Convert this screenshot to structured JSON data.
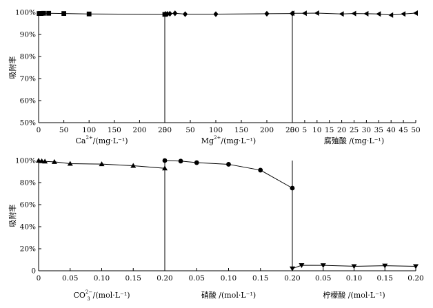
{
  "chart_data": [
    {
      "type": "line",
      "panel": "Ca",
      "ylabel": "吸附率",
      "xlabel_main": "Ca",
      "xlabel_sup": "2+",
      "xlabel_tail": "/(mg·L⁻¹)",
      "xlim": [
        0,
        250
      ],
      "ylim": [
        50,
        100
      ],
      "xticks": [
        "0",
        "50",
        "100",
        "150",
        "200",
        "250"
      ],
      "yticks": [
        "50%",
        "60%",
        "70%",
        "80%",
        "90%",
        "100%"
      ],
      "marker": "square",
      "x": [
        1,
        3,
        5,
        10,
        20,
        50,
        100,
        250
      ],
      "y": [
        99.5,
        99.5,
        99.5,
        99.6,
        99.6,
        99.5,
        99.3,
        99.1
      ]
    },
    {
      "type": "line",
      "panel": "Mg",
      "xlabel_main": "Mg",
      "xlabel_sup": "2+",
      "xlabel_tail": "/(mg·L⁻¹)",
      "xlim": [
        0,
        250
      ],
      "ylim": [
        50,
        100
      ],
      "xticks": [
        "0",
        "50",
        "100",
        "150",
        "200",
        "250"
      ],
      "marker": "diamond",
      "x": [
        1,
        5,
        10,
        20,
        40,
        100,
        200,
        250
      ],
      "y": [
        99.3,
        99.3,
        99.4,
        99.6,
        99.2,
        99.2,
        99.4,
        99.5
      ]
    },
    {
      "type": "line",
      "panel": "humic",
      "xlabel_main": "腐殖酸 /(mg·L⁻¹)",
      "xlim": [
        0,
        50
      ],
      "ylim": [
        50,
        100
      ],
      "xticks": [
        "0",
        "5",
        "10",
        "15",
        "20",
        "25",
        "30",
        "35",
        "40",
        "45",
        "50"
      ],
      "marker": "triangle-left",
      "x": [
        0,
        5,
        10,
        20,
        25,
        30,
        35,
        40,
        45,
        50
      ],
      "y": [
        99.6,
        99.6,
        99.7,
        99.3,
        99.5,
        99.4,
        99.3,
        98.8,
        99.3,
        99.7
      ]
    },
    {
      "type": "line",
      "panel": "CO3",
      "ylabel": "吸附率",
      "xlabel_main": "CO",
      "xlabel_sup": "2−",
      "xlabel_sub": "3",
      "xlabel_tail": "/(mol·L⁻¹)",
      "xlim": [
        0,
        0.2
      ],
      "ylim": [
        0,
        100
      ],
      "xticks": [
        "0",
        "0.05",
        "0.10",
        "0.15",
        "0.20"
      ],
      "yticks": [
        "0",
        "20%",
        "40%",
        "60%",
        "80%",
        "100%"
      ],
      "marker": "triangle-up",
      "x": [
        0,
        0.005,
        0.01,
        0.025,
        0.05,
        0.1,
        0.15,
        0.2
      ],
      "y": [
        100,
        99.5,
        99.2,
        98.8,
        97.2,
        96.8,
        95.3,
        93.0
      ]
    },
    {
      "type": "line",
      "panel": "nitric",
      "xlabel_main": "硝酸 /(mol·L⁻¹)",
      "xlim": [
        0,
        0.2
      ],
      "ylim": [
        0,
        100
      ],
      "xticks": [
        "0",
        "0.05",
        "0.10",
        "0.15",
        "0.20"
      ],
      "marker": "circle",
      "x": [
        0,
        0.025,
        0.05,
        0.1,
        0.15,
        0.2
      ],
      "y": [
        100,
        99.5,
        98.1,
        96.6,
        91.3,
        75.0
      ]
    },
    {
      "type": "line",
      "panel": "citric",
      "xlabel_main": "柠檬酸 /(mol·L⁻¹)",
      "xlim": [
        0,
        0.2
      ],
      "ylim": [
        0,
        100
      ],
      "xticks": [
        "0",
        "0.05",
        "0.10",
        "0.15",
        "0.20"
      ],
      "marker": "triangle-down",
      "x": [
        0,
        0.015,
        0.05,
        0.1,
        0.15,
        0.2
      ],
      "y": [
        2.0,
        5.0,
        4.9,
        4.1,
        4.6,
        4.1
      ]
    }
  ]
}
